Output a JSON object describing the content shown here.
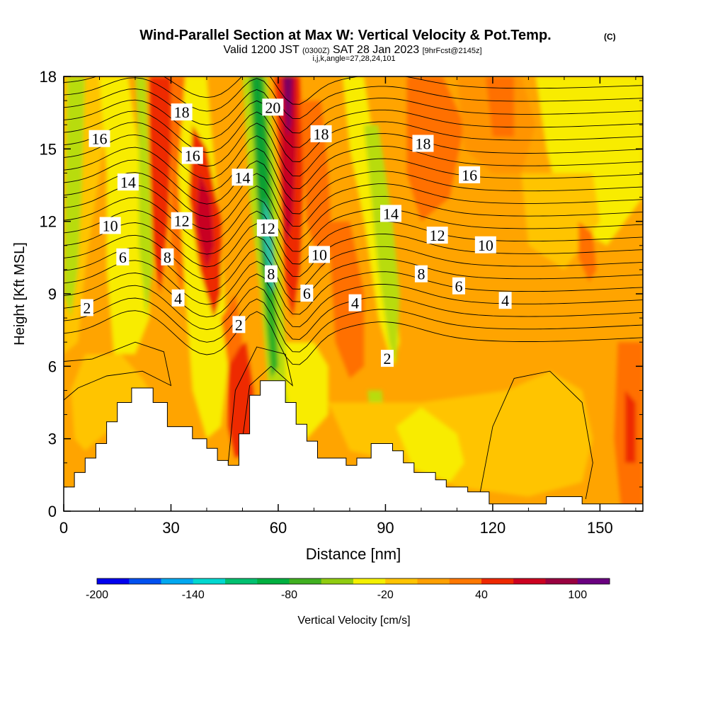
{
  "chart_data": {
    "type": "heatmap",
    "title": "Wind-Parallel Section at Max W: Vertical Velocity & Pot.Temp.",
    "title_mark": "(C)",
    "subtitle_parts": [
      "Valid 1200 JST",
      "(0300Z)",
      "SAT 28 Jan 2023",
      "[9hrFcst@2145z]"
    ],
    "subtitle2": "i,j,k,angle=27,28,24,101",
    "xlabel": "Distance [nm]",
    "ylabel": "Height [Kft MSL]",
    "xlim": [
      0,
      162
    ],
    "ylim": [
      0,
      18
    ],
    "x_ticks": [
      "0",
      "30",
      "60",
      "90",
      "120",
      "150"
    ],
    "x_tick_values": [
      0,
      30,
      60,
      90,
      120,
      150
    ],
    "y_ticks": [
      "0",
      "3",
      "6",
      "9",
      "12",
      "15",
      "18"
    ],
    "y_tick_values": [
      0,
      3,
      6,
      9,
      12,
      15,
      18
    ],
    "colorbar": {
      "label": "Vertical Velocity [cm/s]",
      "tick_labels": [
        "-200",
        "-140",
        "-80",
        "-20",
        "40",
        "100"
      ],
      "tick_values": [
        -200,
        -140,
        -80,
        -20,
        40,
        100
      ],
      "levels": [
        -200,
        -180,
        -160,
        -140,
        -120,
        -100,
        -80,
        -60,
        -40,
        -20,
        0,
        20,
        40,
        60,
        80,
        100,
        120
      ],
      "colors": [
        "#0000ee",
        "#0050f0",
        "#00a8f0",
        "#00d8d0",
        "#00c070",
        "#00b040",
        "#40b020",
        "#90cc10",
        "#f4f000",
        "#ffc400",
        "#ffa000",
        "#ff7800",
        "#ee2800",
        "#cc0020",
        "#990040",
        "#6a0080"
      ]
    },
    "contour_field": "Potential temperature (°C)",
    "contour_labels": [
      {
        "text": "2",
        "x": 6.5,
        "y": 8.4
      },
      {
        "text": "6",
        "x": 16.5,
        "y": 10.5
      },
      {
        "text": "10",
        "x": 13,
        "y": 11.8
      },
      {
        "text": "14",
        "x": 18,
        "y": 13.6
      },
      {
        "text": "16",
        "x": 10,
        "y": 15.4
      },
      {
        "text": "4",
        "x": 32,
        "y": 8.8
      },
      {
        "text": "8",
        "x": 29,
        "y": 10.5
      },
      {
        "text": "12",
        "x": 33,
        "y": 12.0
      },
      {
        "text": "16",
        "x": 36,
        "y": 14.7
      },
      {
        "text": "18",
        "x": 33,
        "y": 16.5
      },
      {
        "text": "2",
        "x": 49,
        "y": 7.7
      },
      {
        "text": "14",
        "x": 50,
        "y": 13.8
      },
      {
        "text": "20",
        "x": 58.5,
        "y": 16.7
      },
      {
        "text": "12",
        "x": 57,
        "y": 11.7
      },
      {
        "text": "8",
        "x": 58,
        "y": 9.8
      },
      {
        "text": "6",
        "x": 68,
        "y": 9.0
      },
      {
        "text": "10",
        "x": 71.5,
        "y": 10.6
      },
      {
        "text": "18",
        "x": 72,
        "y": 15.6
      },
      {
        "text": "4",
        "x": 81.5,
        "y": 8.6
      },
      {
        "text": "2",
        "x": 90.5,
        "y": 6.3
      },
      {
        "text": "14",
        "x": 91.5,
        "y": 12.3
      },
      {
        "text": "8",
        "x": 100,
        "y": 9.8
      },
      {
        "text": "12",
        "x": 104.5,
        "y": 11.4
      },
      {
        "text": "18",
        "x": 100.5,
        "y": 15.2
      },
      {
        "text": "16",
        "x": 113.5,
        "y": 13.9
      },
      {
        "text": "6",
        "x": 110.5,
        "y": 9.3
      },
      {
        "text": "10",
        "x": 118,
        "y": 11.0
      },
      {
        "text": "4",
        "x": 123.5,
        "y": 8.7
      }
    ],
    "terrain": [
      [
        0,
        1.0
      ],
      [
        3,
        1.0
      ],
      [
        3,
        1.6
      ],
      [
        6,
        1.6
      ],
      [
        6,
        2.2
      ],
      [
        9,
        2.2
      ],
      [
        9,
        2.8
      ],
      [
        12,
        2.8
      ],
      [
        12,
        3.7
      ],
      [
        15,
        3.7
      ],
      [
        15,
        4.5
      ],
      [
        19,
        4.5
      ],
      [
        19,
        5.1
      ],
      [
        25,
        5.1
      ],
      [
        25,
        4.5
      ],
      [
        29,
        4.5
      ],
      [
        29,
        3.5
      ],
      [
        36,
        3.5
      ],
      [
        36,
        3.0
      ],
      [
        40,
        3.0
      ],
      [
        40,
        2.6
      ],
      [
        43,
        2.6
      ],
      [
        43,
        2.1
      ],
      [
        46,
        2.1
      ],
      [
        46,
        1.9
      ],
      [
        49,
        1.9
      ],
      [
        49,
        3.2
      ],
      [
        52,
        3.2
      ],
      [
        52,
        4.8
      ],
      [
        55,
        4.8
      ],
      [
        55,
        5.4
      ],
      [
        62,
        5.4
      ],
      [
        62,
        4.5
      ],
      [
        65,
        4.5
      ],
      [
        65,
        3.6
      ],
      [
        68,
        3.6
      ],
      [
        68,
        2.9
      ],
      [
        71,
        2.9
      ],
      [
        71,
        2.2
      ],
      [
        79,
        2.2
      ],
      [
        79,
        1.9
      ],
      [
        82,
        1.9
      ],
      [
        82,
        2.2
      ],
      [
        86,
        2.2
      ],
      [
        86,
        2.8
      ],
      [
        92,
        2.8
      ],
      [
        92,
        2.5
      ],
      [
        95,
        2.5
      ],
      [
        95,
        2.0
      ],
      [
        98,
        2.0
      ],
      [
        98,
        1.6
      ],
      [
        104,
        1.6
      ],
      [
        104,
        1.3
      ],
      [
        107,
        1.3
      ],
      [
        107,
        1.0
      ],
      [
        113,
        1.0
      ],
      [
        113,
        0.8
      ],
      [
        119,
        0.8
      ],
      [
        119,
        0.3
      ],
      [
        135,
        0.3
      ],
      [
        135,
        0.6
      ],
      [
        145,
        0.6
      ],
      [
        145,
        0.3
      ],
      [
        162,
        0.3
      ]
    ]
  }
}
